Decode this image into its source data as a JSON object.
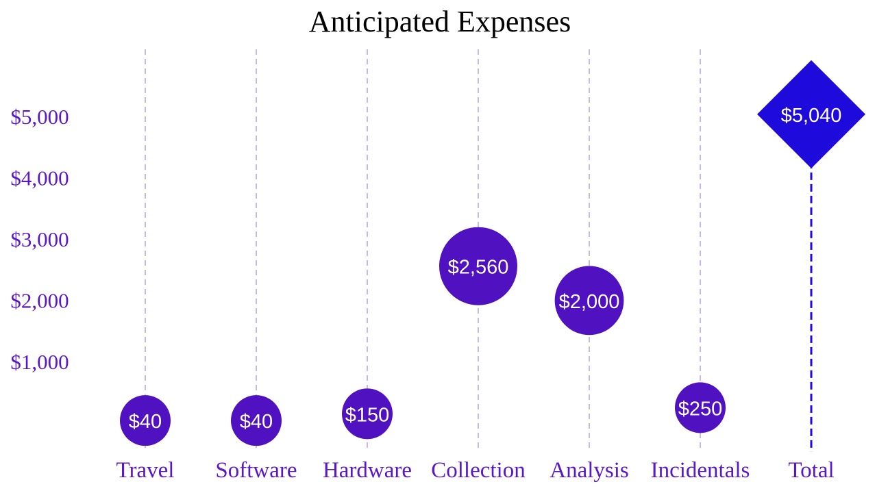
{
  "chart_data": {
    "type": "scatter",
    "title": "Anticipated Expenses",
    "xlabel": "",
    "ylabel": "",
    "ylim": [
      -450,
      6100
    ],
    "y_ticks": [
      1000,
      2000,
      3000,
      4000,
      5000
    ],
    "y_tick_labels": [
      "$1,000",
      "$2,000",
      "$3,000",
      "$4,000",
      "$5,000"
    ],
    "categories": [
      "Travel",
      "Software",
      "Hardware",
      "Collection",
      "Analysis",
      "Incidentals",
      "Total"
    ],
    "values": [
      40,
      40,
      150,
      2560,
      2000,
      250,
      5040
    ],
    "value_labels": [
      "$40",
      "$40",
      "$150",
      "$2,560",
      "$2,000",
      "$250",
      "$5,040"
    ],
    "marker": [
      "circle",
      "circle",
      "circle",
      "circle",
      "circle",
      "circle",
      "diamond"
    ],
    "grid": "vertical dashed lines at each category",
    "legend": "none",
    "colors": {
      "marker": "#5011c0",
      "total_marker": "#1e0adb",
      "axis_text": "#5a17c8",
      "gridline": "#c9b8f0",
      "value_text": "#ffffff",
      "title_text": "#000000"
    }
  }
}
